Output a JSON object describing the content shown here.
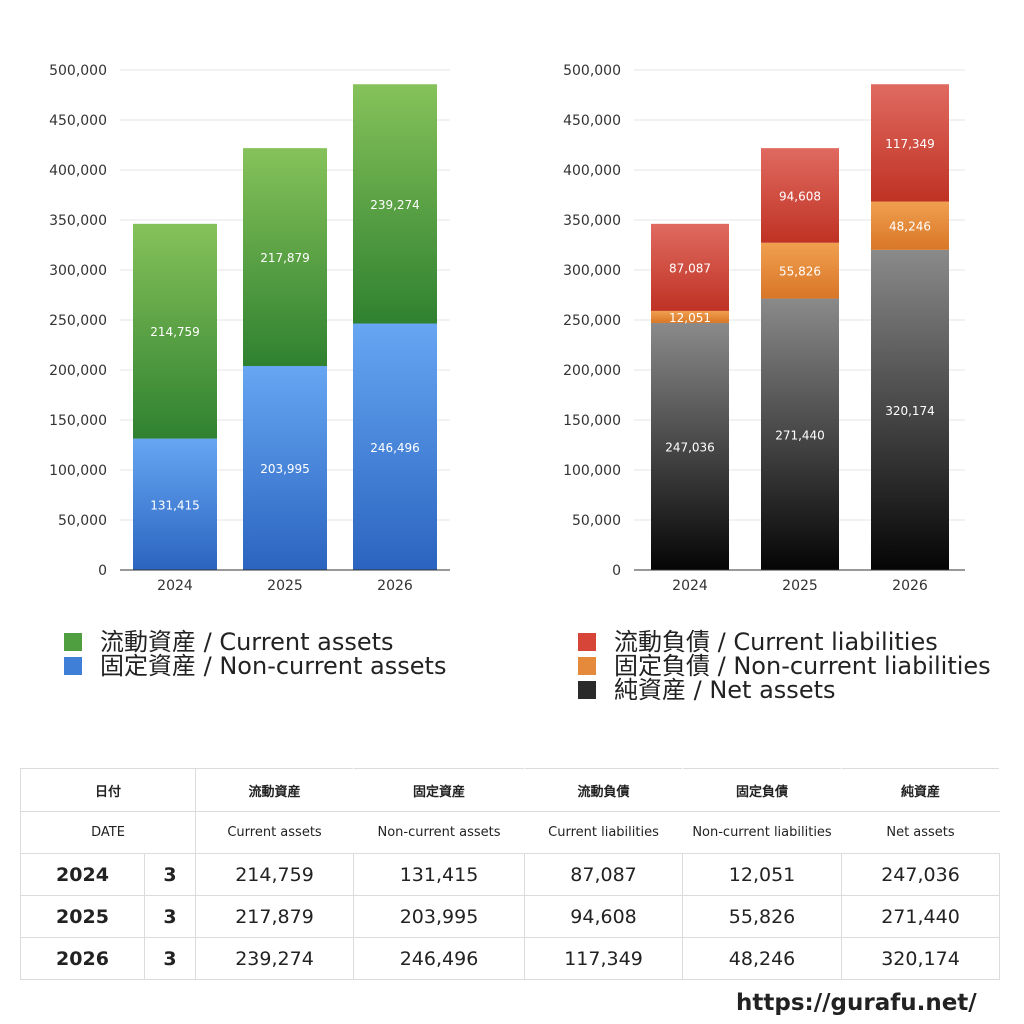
{
  "chart_data": [
    {
      "type": "bar",
      "stacked": true,
      "categories": [
        "2024",
        "2025",
        "2026"
      ],
      "ylim": [
        0,
        500000
      ],
      "yticks": [
        "0",
        "50,000",
        "100,000",
        "150,000",
        "200,000",
        "250,000",
        "300,000",
        "350,000",
        "400,000",
        "450,000",
        "500,000"
      ],
      "series": [
        {
          "name": "固定資産 / Non-current assets",
          "values": [
            131415,
            203995,
            246496
          ],
          "labels": [
            "131,415",
            "203,995",
            "246,496"
          ],
          "color_top": "#66a6f2",
          "color_bottom": "#2b64c0"
        },
        {
          "name": "流動資産 / Current assets",
          "values": [
            214759,
            217879,
            239274
          ],
          "labels": [
            "214,759",
            "217,879",
            "239,274"
          ],
          "color_top": "#86c25a",
          "color_bottom": "#2f8130"
        }
      ]
    },
    {
      "type": "bar",
      "stacked": true,
      "categories": [
        "2024",
        "2025",
        "2026"
      ],
      "ylim": [
        0,
        500000
      ],
      "yticks": [
        "0",
        "50,000",
        "100,000",
        "150,000",
        "200,000",
        "250,000",
        "300,000",
        "350,000",
        "400,000",
        "450,000",
        "500,000"
      ],
      "series": [
        {
          "name": "純資産 / Net assets",
          "values": [
            247036,
            271440,
            320174
          ],
          "labels": [
            "247,036",
            "271,440",
            "320,174"
          ],
          "color_top": "#8a8a8a",
          "color_bottom": "#050505"
        },
        {
          "name": "固定負債 / Non-current liabilities",
          "values": [
            12051,
            55826,
            48246
          ],
          "labels": [
            "12,051",
            "55,826",
            "48,246"
          ],
          "color_top": "#f0a050",
          "color_bottom": "#d87626"
        },
        {
          "name": "流動負債 / Current liabilities",
          "values": [
            87087,
            94608,
            117349
          ],
          "labels": [
            "87,087",
            "94,608",
            "117,349"
          ],
          "color_top": "#e06a60",
          "color_bottom": "#bf3224"
        }
      ]
    }
  ],
  "legend_left": [
    {
      "label": "流動資産 / Current assets",
      "color": "#4f9e3f"
    },
    {
      "label": "固定資産 / Non-current assets",
      "color": "#3f7fd8"
    }
  ],
  "legend_right": [
    {
      "label": "流動負債 / Current liabilities",
      "color": "#d64538"
    },
    {
      "label": "固定負債 / Non-current liabilities",
      "color": "#e58a3a"
    },
    {
      "label": "純資産 / Net assets",
      "color": "#2a2a2a"
    }
  ],
  "table": {
    "header_jp": [
      "日付",
      "流動資産",
      "固定資産",
      "流動負債",
      "固定負債",
      "純資産"
    ],
    "header_en": [
      "DATE",
      "Current assets",
      "Non-current assets",
      "Current liabilities",
      "Non-current liabilities",
      "Net assets"
    ],
    "rows": [
      [
        "2024",
        "3",
        "214,759",
        "131,415",
        "87,087",
        "12,051",
        "247,036"
      ],
      [
        "2025",
        "3",
        "217,879",
        "203,995",
        "94,608",
        "55,826",
        "271,440"
      ],
      [
        "2026",
        "3",
        "239,274",
        "246,496",
        "117,349",
        "48,246",
        "320,174"
      ]
    ]
  },
  "footer_url": "https://gurafu.net/"
}
